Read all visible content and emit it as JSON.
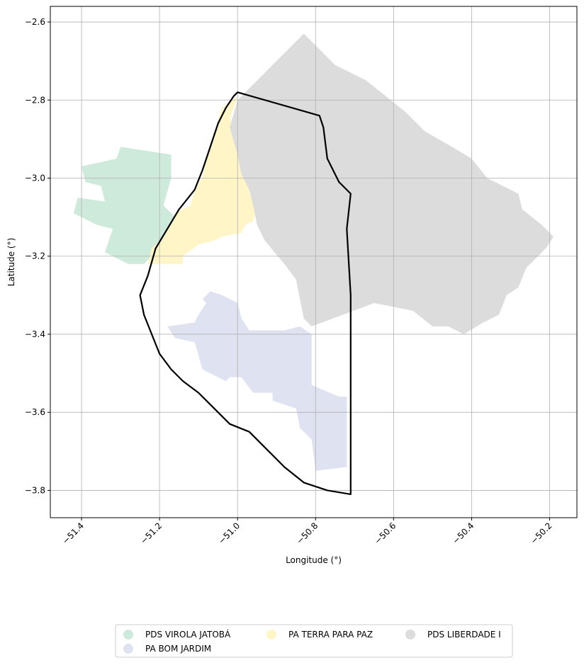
{
  "chart_data": {
    "type": "map",
    "title": "",
    "xlabel": "Longitude (°)",
    "ylabel": "Latitude (°)",
    "xlim": [
      -51.48,
      -50.13
    ],
    "ylim": [
      -3.87,
      -2.56
    ],
    "xticks": [
      -51.4,
      -51.2,
      -51.0,
      -50.8,
      -50.6,
      -50.4,
      -50.2
    ],
    "xtick_labels": [
      "−51.4",
      "−51.2",
      "−51.0",
      "−50.8",
      "−50.6",
      "−50.4",
      "−50.2"
    ],
    "yticks": [
      -2.6,
      -2.8,
      -3.0,
      -3.2,
      -3.4,
      -3.6,
      -3.8
    ],
    "ytick_labels": [
      "−2.6",
      "−2.8",
      "−3.0",
      "−3.2",
      "−3.4",
      "−3.6",
      "−3.8"
    ],
    "grid": true,
    "legend_position": "bottom-center",
    "series": [
      {
        "name": "PDS VIROLA JATOBÁ",
        "color": "#cdeadb",
        "polygon": [
          [
            -51.3,
            -2.92
          ],
          [
            -51.17,
            -2.94
          ],
          [
            -51.17,
            -3.0
          ],
          [
            -51.19,
            -3.07
          ],
          [
            -51.15,
            -3.11
          ],
          [
            -51.13,
            -3.14
          ],
          [
            -51.19,
            -3.16
          ],
          [
            -51.22,
            -3.2
          ],
          [
            -51.24,
            -3.22
          ],
          [
            -51.28,
            -3.22
          ],
          [
            -51.3,
            -3.21
          ],
          [
            -51.34,
            -3.19
          ],
          [
            -51.32,
            -3.13
          ],
          [
            -51.36,
            -3.12
          ],
          [
            -51.42,
            -3.09
          ],
          [
            -51.41,
            -3.05
          ],
          [
            -51.34,
            -3.06
          ],
          [
            -51.35,
            -3.02
          ],
          [
            -51.39,
            -3.01
          ],
          [
            -51.4,
            -2.97
          ],
          [
            -51.31,
            -2.95
          ]
        ]
      },
      {
        "name": "PA BOM JARDIM",
        "color": "#dee2f1",
        "polygon": [
          [
            -51.07,
            -3.29
          ],
          [
            -51.04,
            -3.3
          ],
          [
            -51.0,
            -3.32
          ],
          [
            -50.99,
            -3.36
          ],
          [
            -50.97,
            -3.39
          ],
          [
            -50.88,
            -3.39
          ],
          [
            -50.84,
            -3.38
          ],
          [
            -50.81,
            -3.4
          ],
          [
            -50.81,
            -3.53
          ],
          [
            -50.74,
            -3.56
          ],
          [
            -50.72,
            -3.56
          ],
          [
            -50.72,
            -3.74
          ],
          [
            -50.8,
            -3.75
          ],
          [
            -50.81,
            -3.67
          ],
          [
            -50.84,
            -3.64
          ],
          [
            -50.85,
            -3.59
          ],
          [
            -50.91,
            -3.57
          ],
          [
            -50.91,
            -3.55
          ],
          [
            -50.96,
            -3.55
          ],
          [
            -50.99,
            -3.51
          ],
          [
            -51.02,
            -3.51
          ],
          [
            -51.03,
            -3.52
          ],
          [
            -51.09,
            -3.49
          ],
          [
            -51.11,
            -3.42
          ],
          [
            -51.16,
            -3.41
          ],
          [
            -51.18,
            -3.38
          ],
          [
            -51.11,
            -3.37
          ],
          [
            -51.1,
            -3.35
          ],
          [
            -51.08,
            -3.32
          ],
          [
            -51.09,
            -3.31
          ]
        ]
      },
      {
        "name": "PA TERRA PARA PAZ",
        "color": "#fff5c7",
        "polygon": [
          [
            -51.0,
            -2.79
          ],
          [
            -51.02,
            -2.85
          ],
          [
            -51.0,
            -2.87
          ],
          [
            -50.99,
            -2.9
          ],
          [
            -50.99,
            -2.95
          ],
          [
            -50.97,
            -2.99
          ],
          [
            -50.97,
            -3.04
          ],
          [
            -50.95,
            -3.07
          ],
          [
            -50.96,
            -3.11
          ],
          [
            -50.98,
            -3.12
          ],
          [
            -50.99,
            -3.14
          ],
          [
            -51.04,
            -3.15
          ],
          [
            -51.06,
            -3.16
          ],
          [
            -51.1,
            -3.17
          ],
          [
            -51.14,
            -3.2
          ],
          [
            -51.14,
            -3.22
          ],
          [
            -51.23,
            -3.22
          ],
          [
            -51.22,
            -3.18
          ],
          [
            -51.2,
            -3.16
          ],
          [
            -51.18,
            -3.13
          ],
          [
            -51.16,
            -3.09
          ],
          [
            -51.12,
            -3.07
          ],
          [
            -51.11,
            -3.03
          ],
          [
            -51.09,
            -3.0
          ],
          [
            -51.08,
            -2.95
          ],
          [
            -51.06,
            -2.9
          ],
          [
            -51.05,
            -2.85
          ],
          [
            -51.04,
            -2.82
          ]
        ]
      },
      {
        "name": "PDS LIBERDADE I",
        "color": "#dcdcdc",
        "polygon": [
          [
            -50.83,
            -2.63
          ],
          [
            -50.75,
            -2.71
          ],
          [
            -50.67,
            -2.75
          ],
          [
            -50.62,
            -2.79
          ],
          [
            -50.57,
            -2.83
          ],
          [
            -50.52,
            -2.88
          ],
          [
            -50.45,
            -2.92
          ],
          [
            -50.4,
            -2.95
          ],
          [
            -50.36,
            -3.0
          ],
          [
            -50.32,
            -3.02
          ],
          [
            -50.28,
            -3.04
          ],
          [
            -50.27,
            -3.08
          ],
          [
            -50.22,
            -3.12
          ],
          [
            -50.19,
            -3.15
          ],
          [
            -50.21,
            -3.18
          ],
          [
            -50.23,
            -3.2
          ],
          [
            -50.26,
            -3.23
          ],
          [
            -50.28,
            -3.28
          ],
          [
            -50.31,
            -3.3
          ],
          [
            -50.33,
            -3.35
          ],
          [
            -50.37,
            -3.37
          ],
          [
            -50.42,
            -3.4
          ],
          [
            -50.46,
            -3.38
          ],
          [
            -50.5,
            -3.38
          ],
          [
            -50.55,
            -3.34
          ],
          [
            -50.6,
            -3.33
          ],
          [
            -50.65,
            -3.32
          ],
          [
            -50.73,
            -3.35
          ],
          [
            -50.81,
            -3.38
          ],
          [
            -50.83,
            -3.36
          ],
          [
            -50.85,
            -3.26
          ],
          [
            -50.88,
            -3.22
          ],
          [
            -50.93,
            -3.16
          ],
          [
            -50.95,
            -3.12
          ],
          [
            -50.96,
            -3.07
          ],
          [
            -50.97,
            -3.03
          ],
          [
            -50.99,
            -2.99
          ],
          [
            -51.0,
            -2.94
          ],
          [
            -51.02,
            -2.87
          ],
          [
            -51.0,
            -2.8
          ]
        ]
      }
    ],
    "outline": {
      "color": "#000000",
      "polygon": [
        [
          -51.0,
          -2.78
        ],
        [
          -50.79,
          -2.84
        ],
        [
          -50.78,
          -2.87
        ],
        [
          -50.77,
          -2.95
        ],
        [
          -50.74,
          -3.01
        ],
        [
          -50.71,
          -3.04
        ],
        [
          -50.72,
          -3.13
        ],
        [
          -50.71,
          -3.3
        ],
        [
          -50.71,
          -3.55
        ],
        [
          -50.71,
          -3.81
        ],
        [
          -50.77,
          -3.8
        ],
        [
          -50.83,
          -3.78
        ],
        [
          -50.88,
          -3.74
        ],
        [
          -50.92,
          -3.7
        ],
        [
          -50.97,
          -3.65
        ],
        [
          -51.02,
          -3.63
        ],
        [
          -51.06,
          -3.59
        ],
        [
          -51.1,
          -3.55
        ],
        [
          -51.14,
          -3.52
        ],
        [
          -51.17,
          -3.49
        ],
        [
          -51.2,
          -3.45
        ],
        [
          -51.22,
          -3.4
        ],
        [
          -51.24,
          -3.35
        ],
        [
          -51.25,
          -3.3
        ],
        [
          -51.23,
          -3.25
        ],
        [
          -51.21,
          -3.18
        ],
        [
          -51.18,
          -3.13
        ],
        [
          -51.15,
          -3.08
        ],
        [
          -51.11,
          -3.03
        ],
        [
          -51.09,
          -2.98
        ],
        [
          -51.07,
          -2.92
        ],
        [
          -51.05,
          -2.86
        ],
        [
          -51.03,
          -2.82
        ],
        [
          -51.01,
          -2.79
        ]
      ]
    }
  }
}
